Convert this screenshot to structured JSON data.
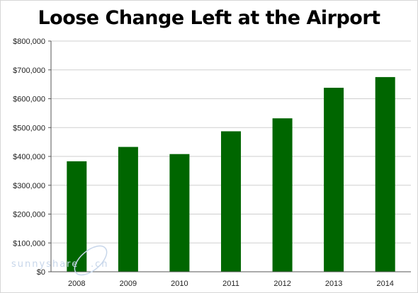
{
  "chart_data": {
    "type": "bar",
    "title": "Loose Change Left at the Airport",
    "xlabel": "",
    "ylabel": "",
    "categories": [
      "2008",
      "2009",
      "2010",
      "2011",
      "2012",
      "2013",
      "2014"
    ],
    "values": [
      383000,
      433000,
      408000,
      487000,
      532000,
      638000,
      675000
    ],
    "ylim": [
      0,
      800000
    ],
    "yticks": [
      0,
      100000,
      200000,
      300000,
      400000,
      500000,
      600000,
      700000,
      800000
    ],
    "ytick_labels": [
      "$0",
      "$100,000",
      "$200,000",
      "$300,000",
      "$400,000",
      "$500,000",
      "$600,000",
      "$700,000",
      "$800,000"
    ],
    "grid": true,
    "legend": "none",
    "bar_color": "#006600",
    "grid_color": "#cfcfcf"
  },
  "watermark": {
    "text": "sunnyshare",
    "suffix": ".cn",
    "color": "#c7d6ea"
  }
}
